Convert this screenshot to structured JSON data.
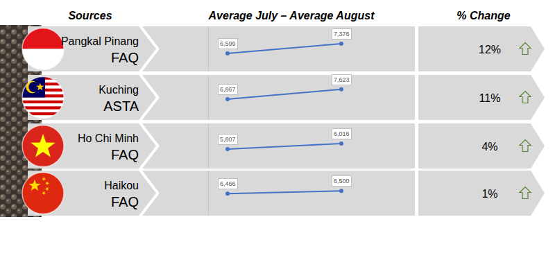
{
  "headers": [
    "Sources",
    "Average July – Average August",
    "% Change"
  ],
  "rows": [
    {
      "source": "Pangkal Pinang",
      "grade": "FAQ",
      "change": {
        "value": 12,
        "label": "12%"
      }
    },
    {
      "source": "Kuching",
      "grade": "ASTA",
      "change": {
        "value": 11,
        "label": "11%"
      }
    },
    {
      "source": "Ho Chi Minh",
      "grade": "FAQ",
      "change": {
        "value": 4,
        "label": "4%"
      }
    },
    {
      "source": "Haikou",
      "grade": "FAQ",
      "change": {
        "value": 1,
        "label": "1%"
      }
    }
  ],
  "chart_data": [
    {
      "type": "line",
      "categories": [
        null,
        null
      ],
      "values": [
        6599,
        7376
      ],
      "value_labels": [
        "6,599",
        "7,376"
      ],
      "data_labels": true,
      "tick_labels": false,
      "color": "#4472c4",
      "marker": "circle",
      "ylim": [
        5150,
        8770
      ]
    },
    {
      "type": "line",
      "categories": [
        null,
        null
      ],
      "values": [
        6867,
        7623
      ],
      "value_labels": [
        "6,867",
        "7,623"
      ],
      "data_labels": true,
      "tick_labels": false,
      "color": "#4472c4",
      "marker": "circle",
      "ylim": [
        5290,
        8720
      ]
    },
    {
      "type": "line",
      "categories": [
        null,
        null
      ],
      "values": [
        5807,
        6016
      ],
      "value_labels": [
        "5,807",
        "6,016"
      ],
      "data_labels": true,
      "tick_labels": false,
      "color": "#4472c4",
      "marker": "circle",
      "ylim": [
        5080,
        6770
      ]
    },
    {
      "type": "line",
      "categories": [
        null,
        null
      ],
      "values": [
        6466,
        6500
      ],
      "value_labels": [
        "6,466",
        "6,500"
      ],
      "data_labels": true,
      "tick_labels": false,
      "color": "#4472c4",
      "marker": "circle",
      "ylim": [
        6205,
        6740
      ]
    }
  ]
}
